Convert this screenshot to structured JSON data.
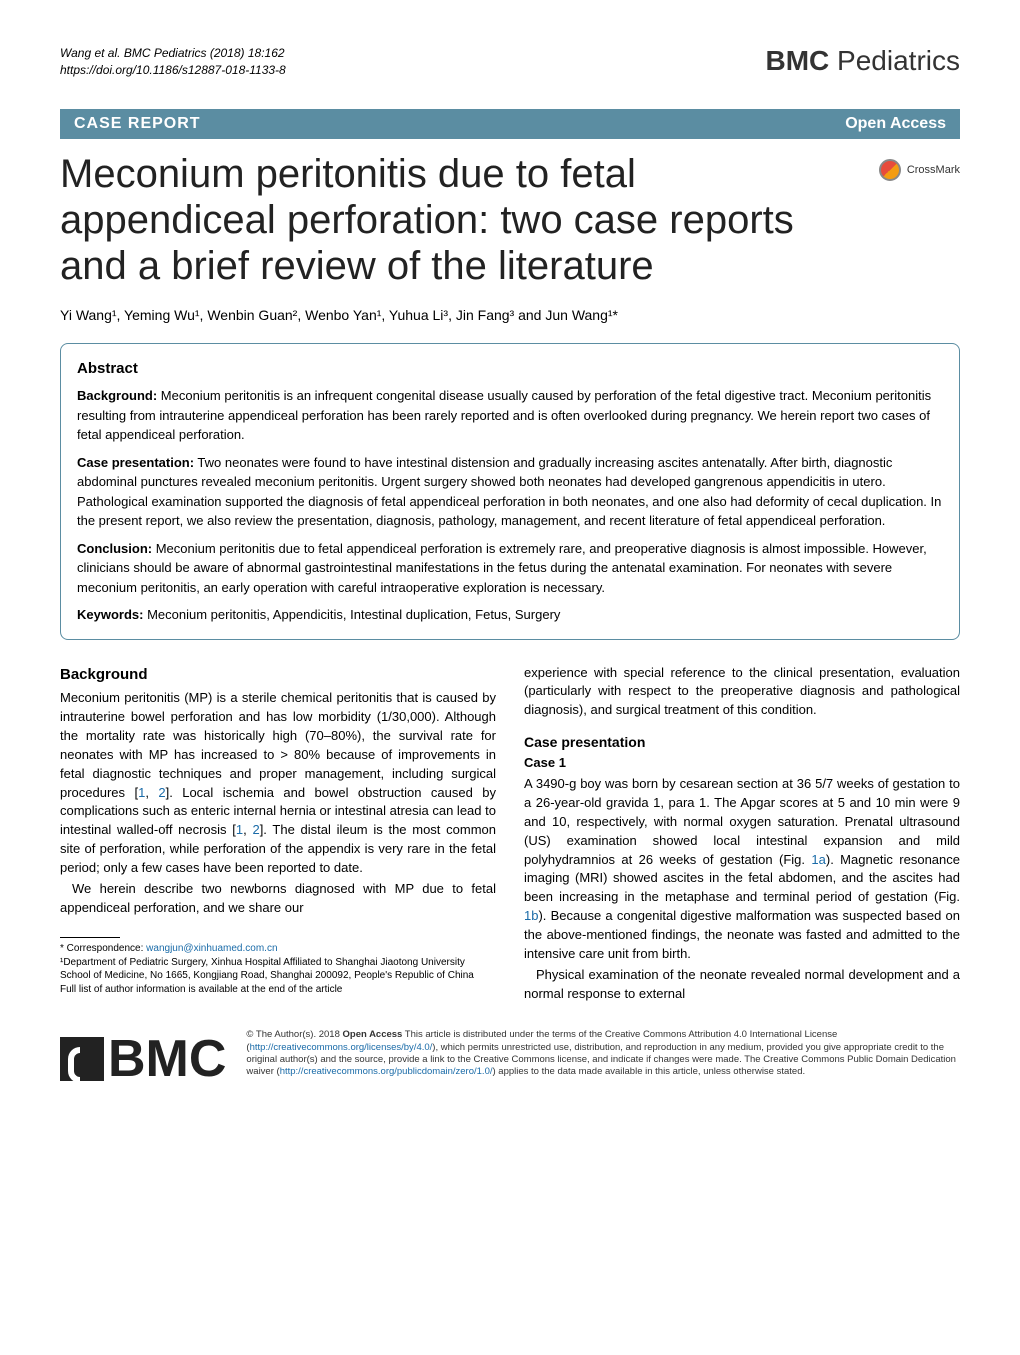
{
  "header": {
    "citation_line1": "Wang et al. BMC Pediatrics  (2018) 18:162",
    "citation_line2": "https://doi.org/10.1186/s12887-018-1133-8",
    "journal_name_part1": "BMC",
    "journal_name_part2": " Pediatrics"
  },
  "category_bar": {
    "category": "CASE REPORT",
    "access": "Open Access"
  },
  "title": "Meconium peritonitis due to fetal appendiceal perforation: two case reports and a brief review of the literature",
  "crossmark_label": "CrossMark",
  "authors_html": "Yi Wang¹, Yeming Wu¹, Wenbin Guan², Wenbo Yan¹, Yuhua Li³, Jin Fang³ and Jun Wang¹*",
  "abstract": {
    "heading": "Abstract",
    "background_label": "Background:",
    "background_text": " Meconium peritonitis is an infrequent congenital disease usually caused by perforation of the fetal digestive tract. Meconium peritonitis resulting from intrauterine appendiceal perforation has been rarely reported and is often overlooked during pregnancy. We herein report two cases of fetal appendiceal perforation.",
    "case_label": "Case presentation:",
    "case_text": " Two neonates were found to have intestinal distension and gradually increasing ascites antenatally. After birth, diagnostic abdominal punctures revealed meconium peritonitis. Urgent surgery showed both neonates had developed gangrenous appendicitis in utero. Pathological examination supported the diagnosis of fetal appendiceal perforation in both neonates, and one also had deformity of cecal duplication. In the present report, we also review the presentation, diagnosis, pathology, management, and recent literature of fetal appendiceal perforation.",
    "conclusion_label": "Conclusion:",
    "conclusion_text": " Meconium peritonitis due to fetal appendiceal perforation is extremely rare, and preoperative diagnosis is almost impossible. However, clinicians should be aware of abnormal gastrointestinal manifestations in the fetus during the antenatal examination. For neonates with severe meconium peritonitis, an early operation with careful intraoperative exploration is necessary.",
    "keywords_label": "Keywords:",
    "keywords_text": " Meconium peritonitis, Appendicitis, Intestinal duplication, Fetus, Surgery"
  },
  "left_col": {
    "h_background": "Background",
    "p1": "Meconium peritonitis (MP) is a sterile chemical peritonitis that is caused by intrauterine bowel perforation and has low morbidity (1/30,000). Although the mortality rate was historically high (70–80%), the survival rate for neonates with MP has increased to > 80% because of improvements in fetal diagnostic techniques and proper management, including surgical procedures [",
    "ref1": "1",
    "p1b": ", ",
    "ref2": "2",
    "p1c": "]. Local ischemia and bowel obstruction caused by complications such as enteric internal hernia or intestinal atresia can lead to intestinal walled-off necrosis [",
    "ref3": "1",
    "p1d": ", ",
    "ref4": "2",
    "p1e": "]. The distal ileum is the most common site of perforation, while perforation of the appendix is very rare in the fetal period; only a few cases have been reported to date.",
    "p2": "We herein describe two newborns diagnosed with MP due to fetal appendiceal perforation, and we share our",
    "correspondence_label": "* Correspondence: ",
    "correspondence_email": "wangjun@xinhuamed.com.cn",
    "affil1": "¹Department of Pediatric Surgery, Xinhua Hospital Affiliated to Shanghai Jiaotong University School of Medicine, No 1665, Kongjiang Road, Shanghai 200092, People's Republic of China",
    "affil_note": "Full list of author information is available at the end of the article"
  },
  "right_col": {
    "p1": "experience with special reference to the clinical presentation, evaluation (particularly with respect to the preoperative diagnosis and pathological diagnosis), and surgical treatment of this condition.",
    "h_case": "Case presentation",
    "h_case1": "Case 1",
    "p2a": "A 3490-g boy was born by cesarean section at 36 5/7 weeks of gestation to a 26-year-old gravida 1, para 1. The Apgar scores at 5 and 10 min were 9 and 10, respectively, with normal oxygen saturation. Prenatal ultrasound (US) examination showed local intestinal expansion and mild polyhydramnios at 26 weeks of gestation (Fig. ",
    "fig1a": "1a",
    "p2b": "). Magnetic resonance imaging (MRI) showed ascites in the fetal abdomen, and the ascites had been increasing in the metaphase and terminal period of gestation (Fig. ",
    "fig1b": "1b",
    "p2c": "). Because a congenital digestive malformation was suspected based on the above-mentioned findings, the neonate was fasted and admitted to the intensive care unit from birth.",
    "p3": "Physical examination of the neonate revealed normal development and a normal response to external"
  },
  "footer": {
    "bmc": "BMC",
    "license_part1": "© The Author(s). 2018 ",
    "license_bold": "Open Access",
    "license_part2": " This article is distributed under the terms of the Creative Commons Attribution 4.0 International License (",
    "license_url1": "http://creativecommons.org/licenses/by/4.0/",
    "license_part3": "), which permits unrestricted use, distribution, and reproduction in any medium, provided you give appropriate credit to the original author(s) and the source, provide a link to the Creative Commons license, and indicate if changes were made. The Creative Commons Public Domain Dedication waiver (",
    "license_url2": "http://creativecommons.org/publicdomain/zero/1.0/",
    "license_part4": ") applies to the data made available in this article, unless otherwise stated."
  },
  "colors": {
    "accent": "#5b8da2",
    "link": "#1a6ba8"
  }
}
